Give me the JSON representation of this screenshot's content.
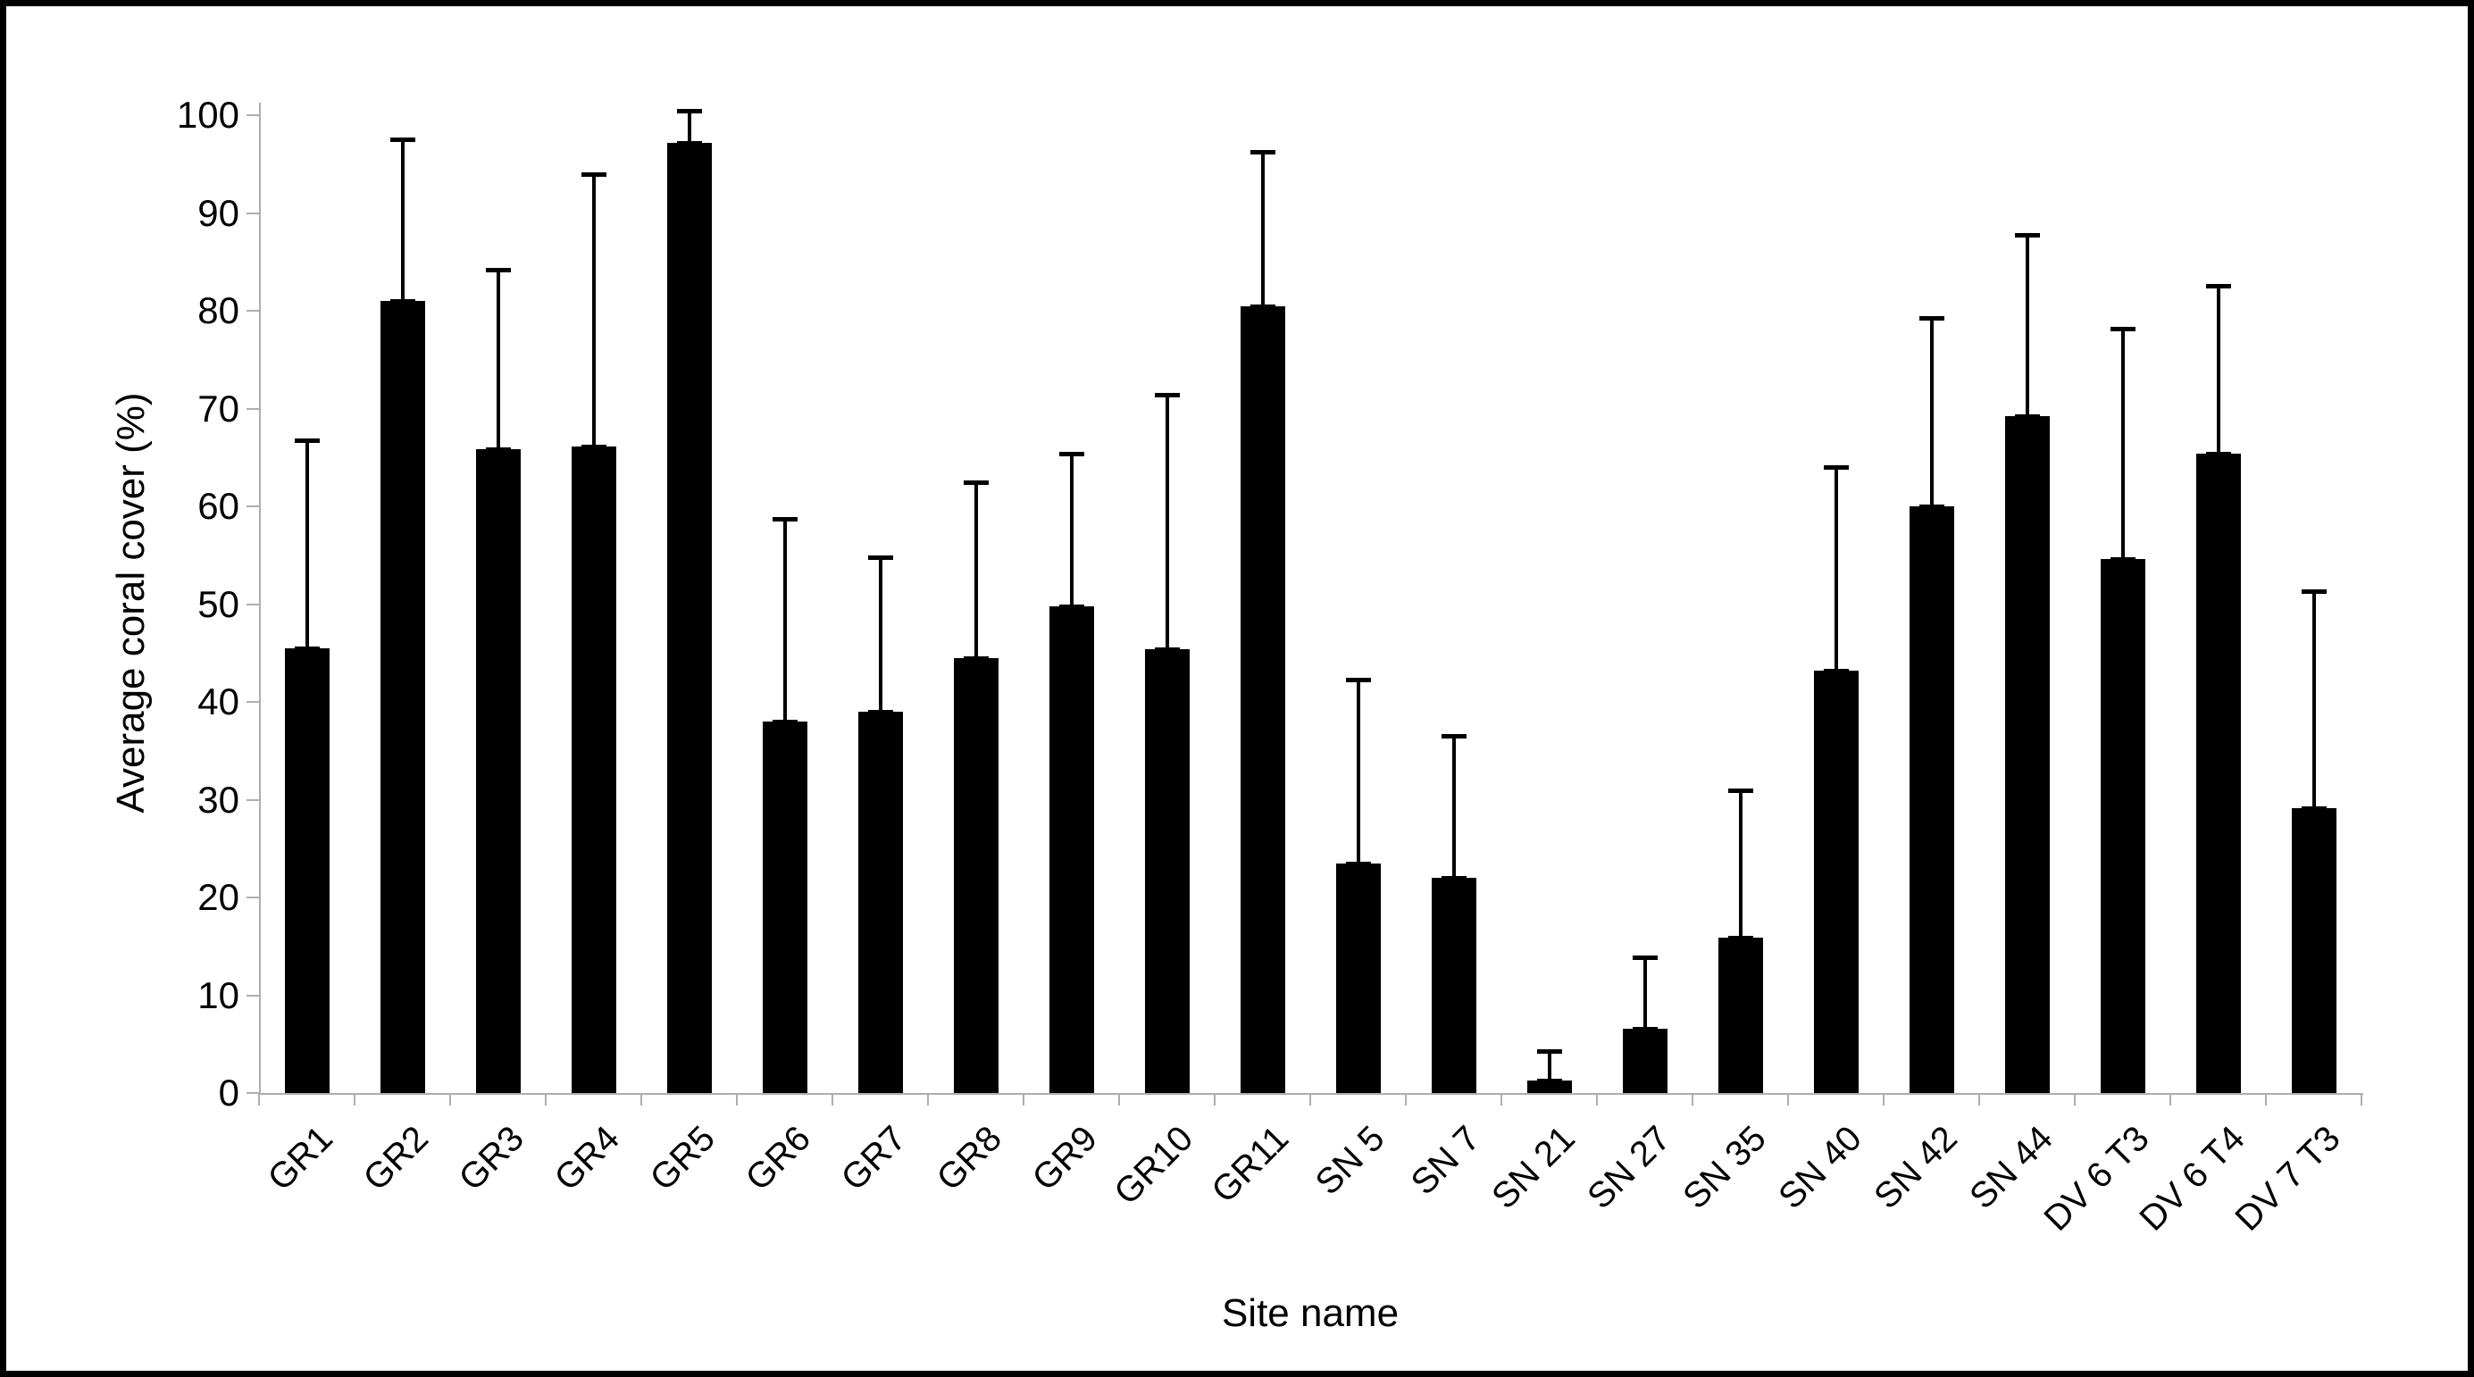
{
  "figure": {
    "ylabel": "Average coral cover (%)",
    "xlabel": "Site name"
  },
  "chart_data": {
    "type": "bar",
    "title": "",
    "xlabel": "Site name",
    "ylabel": "Average coral cover (%)",
    "ylim": [
      0,
      100
    ],
    "ytick_step": 10,
    "ytick_labels": [
      "0",
      "10",
      "20",
      "30",
      "40",
      "50",
      "60",
      "70",
      "80",
      "90",
      "100"
    ],
    "grid": false,
    "legend_position": "none",
    "bar_color": "#000000",
    "axis_color": "#aeaeae",
    "error_bar_direction": "plus",
    "categories": [
      "GR1",
      "GR2",
      "GR3",
      "GR4",
      "GR5",
      "GR6",
      "GR7",
      "GR8",
      "GR9",
      "GR10",
      "GR11",
      "SN 5",
      "SN 7",
      "SN 21",
      "SN 27",
      "SN 35",
      "SN 40",
      "SN 42",
      "SN 44",
      "DV 6 T3",
      "DV 6 T4",
      "DV 7 T3"
    ],
    "values": [
      45.5,
      81,
      65.8,
      66.1,
      97.2,
      38,
      39,
      44.5,
      49.8,
      45.4,
      80.5,
      23.5,
      22,
      1.3,
      6.6,
      15.9,
      43.2,
      60,
      69.2,
      54.6,
      65.4,
      29.1
    ],
    "error_plus": [
      21.3,
      16.5,
      18.4,
      27.9,
      3.3,
      20.7,
      15.8,
      18,
      15.6,
      26,
      15.8,
      18.8,
      14.5,
      3,
      7.3,
      15.1,
      20.8,
      19.3,
      18.6,
      23.6,
      17.2,
      22.2
    ]
  }
}
